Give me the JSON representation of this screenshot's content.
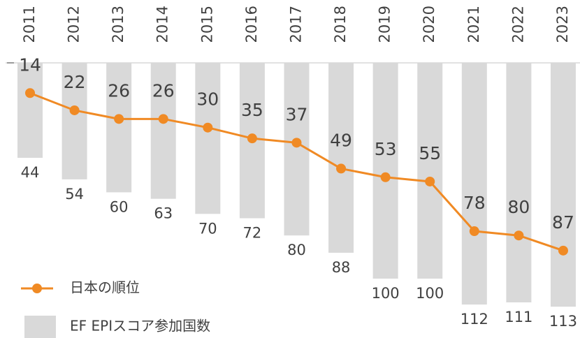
{
  "chart_data": {
    "type": "bar-line",
    "categories": [
      "2011",
      "2012",
      "2013",
      "2014",
      "2015",
      "2016",
      "2017",
      "2018",
      "2019",
      "2020",
      "2021",
      "2022",
      "2023"
    ],
    "series": [
      {
        "name": "日本の順位",
        "type": "line",
        "color": "#f08a24",
        "values": [
          14,
          22,
          26,
          26,
          30,
          35,
          37,
          49,
          53,
          55,
          78,
          80,
          87
        ]
      },
      {
        "name": "EF EPIスコア参加国数",
        "type": "bar",
        "color": "#d9d9d9",
        "values": [
          44,
          54,
          60,
          63,
          70,
          72,
          80,
          88,
          100,
          100,
          112,
          111,
          113
        ]
      }
    ],
    "ylim": [
      0,
      120
    ],
    "y_reversed": true,
    "legend": "bottom-left"
  }
}
